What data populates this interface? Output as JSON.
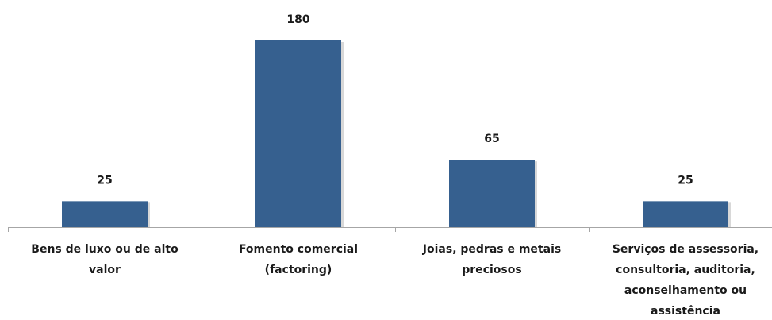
{
  "chart_data": {
    "type": "bar",
    "categories": [
      [
        "Bens de luxo ou de alto",
        "valor"
      ],
      [
        "Fomento comercial",
        "(factoring)"
      ],
      [
        "Joias, pedras e metais",
        "preciosos"
      ],
      [
        "Serviços de assessoria,",
        "consultoria, auditoria,",
        "aconselhamento ou",
        "assistência"
      ]
    ],
    "values": [
      25,
      180,
      65,
      25
    ],
    "data_labels": [
      "25",
      "180",
      "65",
      "25"
    ],
    "title": "",
    "xlabel": "",
    "ylabel": "",
    "ylim": [
      0,
      180
    ],
    "grid": false,
    "legend": "none",
    "colors": {
      "bar": "#36608F",
      "bar_shadow": "#B8B8B8",
      "axis": "#A6A6A6",
      "text": "#1A1A1A"
    }
  }
}
